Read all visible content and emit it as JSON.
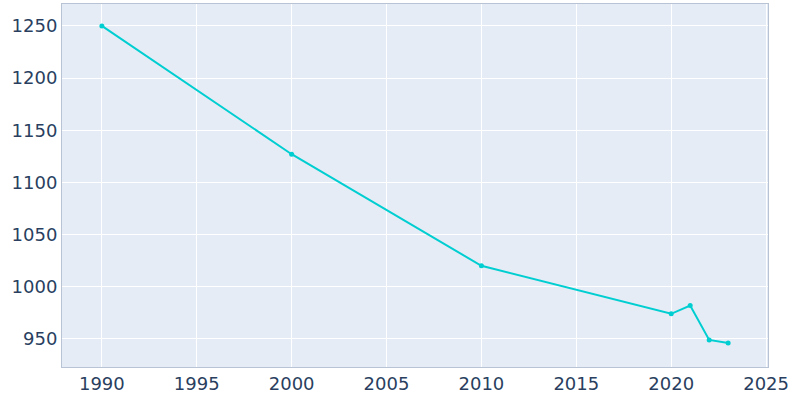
{
  "chart_data": {
    "type": "line",
    "x": [
      1990,
      2000,
      2010,
      2020,
      2021,
      2022,
      2023
    ],
    "values": [
      1250,
      1127,
      1020,
      974,
      982,
      949,
      946
    ],
    "color": "#00ced1",
    "marker": "circle",
    "xlim": [
      1987.9,
      2025.1
    ],
    "xticks": [
      1990,
      1995,
      2000,
      2005,
      2010,
      2015,
      2020,
      2025
    ],
    "ylim": [
      923,
      1271
    ],
    "yticks": [
      950,
      1000,
      1050,
      1100,
      1150,
      1200,
      1250
    ],
    "grid": true
  }
}
